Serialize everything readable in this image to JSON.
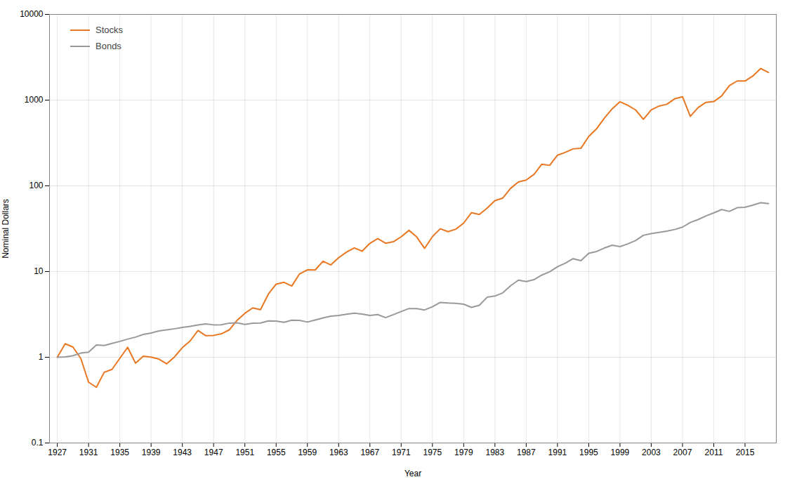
{
  "chart_data": {
    "type": "line",
    "xlabel": "Year",
    "ylabel": "Nominal Dollars",
    "x": [
      1927,
      1928,
      1929,
      1930,
      1931,
      1932,
      1933,
      1934,
      1935,
      1936,
      1937,
      1938,
      1939,
      1940,
      1941,
      1942,
      1943,
      1944,
      1945,
      1946,
      1947,
      1948,
      1949,
      1950,
      1951,
      1952,
      1953,
      1954,
      1955,
      1956,
      1957,
      1958,
      1959,
      1960,
      1961,
      1962,
      1963,
      1964,
      1965,
      1966,
      1967,
      1968,
      1969,
      1970,
      1971,
      1972,
      1973,
      1974,
      1975,
      1976,
      1977,
      1978,
      1979,
      1980,
      1981,
      1982,
      1983,
      1984,
      1985,
      1986,
      1987,
      1988,
      1989,
      1990,
      1991,
      1992,
      1993,
      1994,
      1995,
      1996,
      1997,
      1998,
      1999,
      2000,
      2001,
      2002,
      2003,
      2004,
      2005,
      2006,
      2007,
      2008,
      2009,
      2010,
      2011,
      2012,
      2013,
      2014,
      2015,
      2016,
      2017,
      2018
    ],
    "series": [
      {
        "name": "Stocks",
        "color": "#E87722",
        "values": [
          1.0,
          1.438,
          1.314,
          0.973,
          0.512,
          0.446,
          0.668,
          0.722,
          0.972,
          1.308,
          0.853,
          1.03,
          1.005,
          0.953,
          0.838,
          1.011,
          1.295,
          1.551,
          2.051,
          1.783,
          1.799,
          1.881,
          2.087,
          2.699,
          3.259,
          3.765,
          3.588,
          5.445,
          7.128,
          7.495,
          6.774,
          9.402,
          10.46,
          10.44,
          13.19,
          11.95,
          14.53,
          16.85,
          18.88,
          17.3,
          21.35,
          24.21,
          21.39,
          22.27,
          25.44,
          30.24,
          25.3,
          18.62,
          25.6,
          31.56,
          29.22,
          31.27,
          36.79,
          48.65,
          46.37,
          55.01,
          67.33,
          71.88,
          93.42,
          110.9,
          116.7,
          136.3,
          178.8,
          173.3,
          227.4,
          245.6,
          270.0,
          274.0,
          376.5,
          463.0,
          616.7,
          790.7,
          956.8,
          871.2,
          768.0,
          597.7,
          769.8,
          852.8,
          894.8,
          1037,
          1094,
          645.7,
          817.4,
          941.6,
          960.9,
          1116,
          1474,
          1672,
          1669,
          1910,
          2338,
          2103
        ]
      },
      {
        "name": "Bonds",
        "color": "#999999",
        "values": [
          1.0,
          1.008,
          1.042,
          1.118,
          1.148,
          1.39,
          1.372,
          1.451,
          1.533,
          1.63,
          1.717,
          1.846,
          1.92,
          2.027,
          2.086,
          2.153,
          2.226,
          2.292,
          2.385,
          2.456,
          2.388,
          2.398,
          2.503,
          2.524,
          2.419,
          2.494,
          2.511,
          2.66,
          2.641,
          2.561,
          2.704,
          2.695,
          2.575,
          2.718,
          2.876,
          3.013,
          3.073,
          3.177,
          3.264,
          3.198,
          3.071,
          3.145,
          2.901,
          3.137,
          3.418,
          3.703,
          3.695,
          3.563,
          3.878,
          4.367,
          4.302,
          4.259,
          4.155,
          3.819,
          4.047,
          5.012,
          5.18,
          5.638,
          6.825,
          7.93,
          7.642,
          8.04,
          9.103,
          9.917,
          11.4,
          12.51,
          14.13,
          13.41,
          16.33,
          17.15,
          18.8,
          20.29,
          19.54,
          21.04,
          22.98,
          26.49,
          27.71,
          28.61,
          29.65,
          30.96,
          33.0,
          37.35,
          40.44,
          44.55,
          48.34,
          52.89,
          50.35,
          55.6,
          56.15,
          59.52,
          63.6,
          62.23
        ]
      }
    ],
    "log": "y",
    "xlim": [
      1926,
      2019
    ],
    "xticks": [
      1927,
      1931,
      1935,
      1939,
      1943,
      1947,
      1951,
      1955,
      1959,
      1963,
      1967,
      1971,
      1975,
      1979,
      1983,
      1987,
      1991,
      1995,
      1999,
      2003,
      2007,
      2011,
      2015
    ],
    "ylim": [
      0.1,
      10000
    ],
    "yticks": [
      0.1,
      1,
      10,
      100,
      1000,
      10000
    ],
    "grid": true,
    "legend": "upper left"
  }
}
